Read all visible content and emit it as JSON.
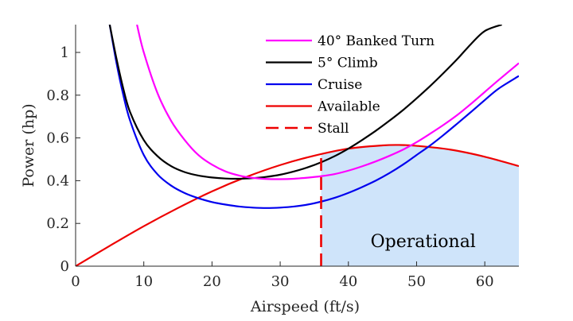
{
  "chart_data": {
    "type": "line",
    "title": "",
    "xlabel": "Airspeed (ft/s)",
    "ylabel": "Power (hp)",
    "xlim": [
      0,
      65
    ],
    "ylim": [
      0,
      1.13
    ],
    "xticks": [
      "0",
      "10",
      "20",
      "30",
      "40",
      "50",
      "60"
    ],
    "xtick_values": [
      0,
      10,
      20,
      30,
      40,
      50,
      60
    ],
    "yticks": [
      "0",
      "0.2",
      "0.4",
      "0.6",
      "0.8",
      "1"
    ],
    "ytick_values": [
      0,
      0.2,
      0.4,
      0.6,
      0.8,
      1
    ],
    "grid": false,
    "legend_position": "top-right",
    "series": [
      {
        "name": "40° Banked Turn",
        "color": "#ff00ff",
        "style": "solid",
        "x": [
          9,
          10,
          12,
          14,
          16,
          18,
          20,
          22,
          24,
          26,
          28,
          30,
          32,
          34,
          36,
          38,
          40,
          42,
          44,
          46,
          48,
          50,
          52,
          54,
          56,
          58,
          60,
          62,
          65
        ],
        "y": [
          1.13,
          1.0,
          0.81,
          0.68,
          0.59,
          0.52,
          0.475,
          0.443,
          0.424,
          0.413,
          0.408,
          0.407,
          0.409,
          0.414,
          0.421,
          0.431,
          0.447,
          0.467,
          0.49,
          0.516,
          0.545,
          0.58,
          0.62,
          0.662,
          0.708,
          0.76,
          0.815,
          0.87,
          0.95
        ]
      },
      {
        "name": "5° Climb",
        "color": "#000000",
        "style": "solid",
        "x": [
          5,
          6,
          7,
          8,
          10,
          12,
          14,
          16,
          18,
          20,
          22,
          24,
          26,
          28,
          30,
          32,
          34,
          36,
          38,
          40,
          42,
          44,
          46,
          48,
          50,
          52,
          54,
          56,
          58,
          60,
          62.5
        ],
        "y": [
          1.13,
          0.97,
          0.83,
          0.72,
          0.59,
          0.515,
          0.468,
          0.44,
          0.424,
          0.415,
          0.41,
          0.409,
          0.412,
          0.418,
          0.428,
          0.443,
          0.462,
          0.486,
          0.515,
          0.55,
          0.59,
          0.633,
          0.68,
          0.73,
          0.785,
          0.843,
          0.905,
          0.97,
          1.04,
          1.1,
          1.13
        ]
      },
      {
        "name": "Cruise",
        "color": "#0000ee",
        "style": "solid",
        "x": [
          5,
          6,
          7,
          8,
          10,
          12,
          14,
          16,
          18,
          20,
          22,
          24,
          26,
          28,
          30,
          32,
          34,
          36,
          38,
          40,
          42,
          44,
          46,
          48,
          50,
          52,
          54,
          56,
          58,
          60,
          62,
          65
        ],
        "y": [
          1.13,
          0.95,
          0.8,
          0.68,
          0.52,
          0.43,
          0.377,
          0.342,
          0.318,
          0.3,
          0.288,
          0.279,
          0.274,
          0.272,
          0.274,
          0.279,
          0.288,
          0.302,
          0.32,
          0.343,
          0.37,
          0.4,
          0.435,
          0.475,
          0.52,
          0.565,
          0.615,
          0.668,
          0.722,
          0.777,
          0.83,
          0.89
        ]
      },
      {
        "name": "Available",
        "color": "#ee0000",
        "style": "solid",
        "x": [
          0,
          5,
          10,
          15,
          20,
          25,
          30,
          35,
          40,
          45,
          47.5,
          50,
          55,
          60,
          65
        ],
        "y": [
          0,
          0.095,
          0.187,
          0.272,
          0.35,
          0.417,
          0.473,
          0.517,
          0.55,
          0.565,
          0.567,
          0.563,
          0.545,
          0.512,
          0.468
        ]
      },
      {
        "name": "Stall",
        "color": "#ee0000",
        "style": "dashed",
        "x": [
          36,
          36
        ],
        "y": [
          0,
          0.53
        ]
      }
    ],
    "annotations": [
      {
        "text": "Operational",
        "region_x": [
          36,
          65
        ],
        "region_color": "#cfe4fa"
      }
    ]
  }
}
